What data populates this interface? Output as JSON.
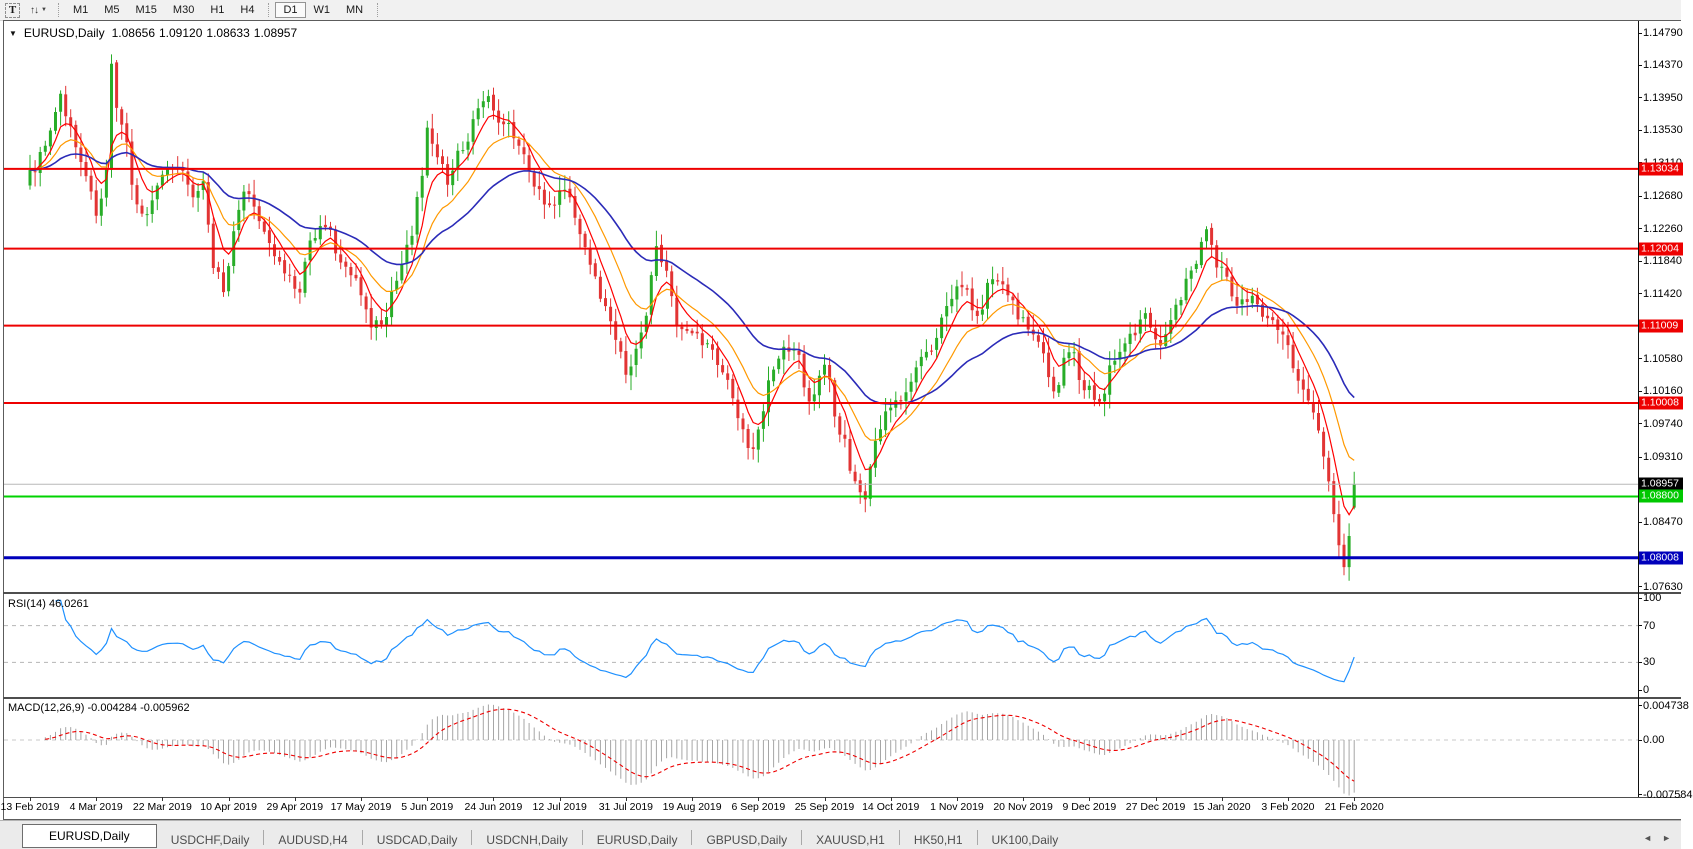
{
  "icons": {
    "dropdown": "▼",
    "sort_tool": "↑↓",
    "caret": "▼",
    "scroll_left": "◄",
    "scroll_right": "►"
  },
  "toolbar": {
    "text_tool_label": "T",
    "timeframes": [
      "M1",
      "M5",
      "M15",
      "M30",
      "H1",
      "H4",
      "D1",
      "W1",
      "MN"
    ],
    "active_timeframe": "D1"
  },
  "chart_title": {
    "symbol": "EURUSD,Daily",
    "open": "1.08656",
    "high": "1.09120",
    "low": "1.08633",
    "close": "1.08957"
  },
  "price_axis": {
    "ticks": [
      "1.14790",
      "1.14370",
      "1.13950",
      "1.13530",
      "1.13110",
      "1.12680",
      "1.12260",
      "1.11840",
      "1.11420",
      "1.10580",
      "1.10160",
      "1.09740",
      "1.09310",
      "1.08470",
      "1.07630"
    ]
  },
  "date_axis": {
    "labels": [
      "13 Feb 2019",
      "4 Mar 2019",
      "22 Mar 2019",
      "10 Apr 2019",
      "29 Apr 2019",
      "17 May 2019",
      "5 Jun 2019",
      "24 Jun 2019",
      "12 Jul 2019",
      "31 Jul 2019",
      "19 Aug 2019",
      "6 Sep 2019",
      "25 Sep 2019",
      "14 Oct 2019",
      "1 Nov 2019",
      "20 Nov 2019",
      "9 Dec 2019",
      "27 Dec 2019",
      "15 Jan 2020",
      "3 Feb 2020",
      "21 Feb 2020"
    ]
  },
  "levels": [
    {
      "label": "1.13034",
      "value": 1.13034,
      "line_color": "#ee0000",
      "label_bg": "#ee0000",
      "line_width": 2,
      "role": "resistance"
    },
    {
      "label": "1.12004",
      "value": 1.12004,
      "line_color": "#ee0000",
      "label_bg": "#ee0000",
      "line_width": 2,
      "role": "resistance"
    },
    {
      "label": "1.11009",
      "value": 1.11009,
      "line_color": "#ee0000",
      "label_bg": "#ee0000",
      "line_width": 2,
      "role": "resistance"
    },
    {
      "label": "1.10008",
      "value": 1.10008,
      "line_color": "#ee0000",
      "label_bg": "#ee0000",
      "line_width": 2,
      "role": "resistance"
    },
    {
      "label": "1.08957",
      "value": 1.08957,
      "line_color": "#b8b8b8",
      "label_bg": "#000000",
      "line_width": 1,
      "role": "current-price"
    },
    {
      "label": "1.08800",
      "value": 1.088,
      "line_color": "#00d300",
      "label_bg": "#00c800",
      "line_width": 2,
      "role": "support"
    },
    {
      "label": "1.08008",
      "value": 1.08008,
      "line_color": "#0000bb",
      "label_bg": "#0000bb",
      "line_width": 3,
      "role": "support"
    }
  ],
  "rsi_panel": {
    "name": "RSI(14)",
    "value": "46.0261",
    "line_color": "#1e90ff",
    "ticks": [
      {
        "label": "100",
        "value": 100
      },
      {
        "label": "70",
        "value": 70
      },
      {
        "label": "30",
        "value": 30
      },
      {
        "label": "0",
        "value": 0
      }
    ],
    "dashed_levels": [
      70,
      30
    ]
  },
  "macd_panel": {
    "name": "MACD(12,26,9)",
    "values": "-0.004284 -0.005962",
    "histogram_color": "#a6a6a6",
    "signal_color": "#ee0000",
    "ticks": [
      {
        "label": "0.004738",
        "value": 0.004738
      },
      {
        "label": "0.00",
        "value": 0
      },
      {
        "label": "-0.007584",
        "value": -0.007584
      }
    ]
  },
  "tabs": {
    "items": [
      {
        "label": "EURUSD,Daily",
        "active": true
      },
      {
        "label": "USDCHF,Daily",
        "active": false
      },
      {
        "label": "AUDUSD,H4",
        "active": false
      },
      {
        "label": "USDCAD,Daily",
        "active": false
      },
      {
        "label": "USDCNH,Daily",
        "active": false
      },
      {
        "label": "EURUSD,Daily",
        "active": false
      },
      {
        "label": "GBPUSD,Daily",
        "active": false
      },
      {
        "label": "XAUUSD,H1",
        "active": false
      },
      {
        "label": "HK50,H1",
        "active": false
      },
      {
        "label": "UK100,Daily",
        "active": false
      }
    ]
  },
  "chart_data": {
    "type": "candlestick",
    "symbol": "EURUSD",
    "timeframe": "Daily",
    "title": "EURUSD,Daily 1.08656 1.09120 1.08633 1.08957",
    "visible_price_range": [
      1.0742,
      1.1492
    ],
    "visible_date_range": [
      "13 Feb 2019",
      "21 Feb 2020"
    ],
    "last_bar": {
      "open": 1.08656,
      "high": 1.0912,
      "low": 1.08633,
      "close": 1.08957
    },
    "up_color": "#28ad28",
    "down_color": "#e23434",
    "close_anchors": [
      [
        0,
        1.1295
      ],
      [
        3,
        1.133
      ],
      [
        6,
        1.1398
      ],
      [
        8,
        1.136
      ],
      [
        10,
        1.131
      ],
      [
        12,
        1.127
      ],
      [
        13,
        1.1235
      ],
      [
        15,
        1.1298
      ],
      [
        16,
        1.1445
      ],
      [
        17,
        1.138
      ],
      [
        19,
        1.133
      ],
      [
        21,
        1.125
      ],
      [
        23,
        1.1243
      ],
      [
        26,
        1.129
      ],
      [
        29,
        1.1312
      ],
      [
        32,
        1.127
      ],
      [
        34,
        1.1295
      ],
      [
        36,
        1.118
      ],
      [
        38,
        1.115
      ],
      [
        40,
        1.122
      ],
      [
        42,
        1.1272
      ],
      [
        45,
        1.124
      ],
      [
        48,
        1.1195
      ],
      [
        51,
        1.116
      ],
      [
        53,
        1.114
      ],
      [
        55,
        1.1215
      ],
      [
        58,
        1.123
      ],
      [
        61,
        1.118
      ],
      [
        64,
        1.116
      ],
      [
        67,
        1.1105
      ],
      [
        69,
        1.1095
      ],
      [
        71,
        1.114
      ],
      [
        73,
        1.118
      ],
      [
        75,
        1.122
      ],
      [
        77,
        1.13
      ],
      [
        78,
        1.1355
      ],
      [
        80,
        1.1315
      ],
      [
        82,
        1.129
      ],
      [
        85,
        1.133
      ],
      [
        88,
        1.138
      ],
      [
        90,
        1.14
      ],
      [
        92,
        1.137
      ],
      [
        94,
        1.1355
      ],
      [
        96,
        1.133
      ],
      [
        99,
        1.1285
      ],
      [
        102,
        1.1255
      ],
      [
        105,
        1.1275
      ],
      [
        108,
        1.1225
      ],
      [
        111,
        1.116
      ],
      [
        113,
        1.1125
      ],
      [
        115,
        1.108
      ],
      [
        117,
        1.104
      ],
      [
        119,
        1.1065
      ],
      [
        121,
        1.112
      ],
      [
        123,
        1.12
      ],
      [
        125,
        1.1175
      ],
      [
        127,
        1.1105
      ],
      [
        130,
        1.109
      ],
      [
        133,
        1.1075
      ],
      [
        136,
        1.1045
      ],
      [
        139,
        1.0985
      ],
      [
        141,
        1.0935
      ],
      [
        143,
        1.096
      ],
      [
        145,
        1.103
      ],
      [
        147,
        1.1065
      ],
      [
        150,
        1.1075
      ],
      [
        153,
        1.1005
      ],
      [
        156,
        1.1045
      ],
      [
        159,
        1.0965
      ],
      [
        162,
        1.0905
      ],
      [
        164,
        1.088
      ],
      [
        166,
        1.095
      ],
      [
        168,
        1.0985
      ],
      [
        171,
        1.1005
      ],
      [
        174,
        1.1045
      ],
      [
        177,
        1.1075
      ],
      [
        180,
        1.113
      ],
      [
        183,
        1.1155
      ],
      [
        186,
        1.1115
      ],
      [
        189,
        1.1165
      ],
      [
        192,
        1.114
      ],
      [
        195,
        1.1105
      ],
      [
        198,
        1.1075
      ],
      [
        201,
        1.1015
      ],
      [
        204,
        1.107
      ],
      [
        207,
        1.1025
      ],
      [
        210,
        1.1005
      ],
      [
        213,
        1.1055
      ],
      [
        216,
        1.1085
      ],
      [
        219,
        1.1115
      ],
      [
        222,
        1.1075
      ],
      [
        225,
        1.1125
      ],
      [
        228,
        1.1175
      ],
      [
        231,
        1.1225
      ],
      [
        234,
        1.117
      ],
      [
        237,
        1.1125
      ],
      [
        240,
        1.1135
      ],
      [
        243,
        1.1105
      ],
      [
        246,
        1.1085
      ],
      [
        249,
        1.1035
      ],
      [
        251,
        1.1005
      ],
      [
        253,
        1.096
      ],
      [
        255,
        1.0905
      ],
      [
        256,
        1.086
      ],
      [
        257,
        1.082
      ],
      [
        258,
        1.0785
      ],
      [
        259,
        1.0825
      ],
      [
        260,
        1.08957
      ]
    ],
    "moving_averages": [
      {
        "type": "EMA",
        "period": 6,
        "color": "#ff0000"
      },
      {
        "type": "EMA",
        "period": 14,
        "color": "#ff9900"
      },
      {
        "type": "EMA",
        "period": 34,
        "color": "#2b2bb8"
      }
    ],
    "indicators": [
      {
        "name": "RSI",
        "period": 14,
        "current": 46.0261,
        "levels": [
          70,
          30
        ]
      },
      {
        "name": "MACD",
        "fast": 12,
        "slow": 26,
        "signal": 9,
        "current_macd": -0.004284,
        "current_signal": -0.005962,
        "scale_max": 0.004738,
        "scale_min": -0.007584
      }
    ],
    "horizontal_levels": [
      {
        "price": 1.13034,
        "color": "red"
      },
      {
        "price": 1.12004,
        "color": "red"
      },
      {
        "price": 1.11009,
        "color": "red"
      },
      {
        "price": 1.10008,
        "color": "red"
      },
      {
        "price": 1.088,
        "color": "green"
      },
      {
        "price": 1.08008,
        "color": "blue"
      },
      {
        "price": 1.08957,
        "color": "gray",
        "note": "current price line"
      }
    ]
  }
}
